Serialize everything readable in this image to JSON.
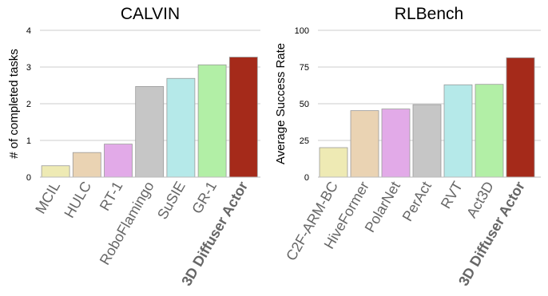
{
  "chart_data": [
    {
      "type": "bar",
      "title": "CALVIN",
      "ylabel": "# of completed tasks",
      "xlabel": "",
      "ylim": [
        0,
        4
      ],
      "yticks": [
        0,
        1,
        2,
        3,
        4
      ],
      "grid": true,
      "categories": [
        "MCIL",
        "HULC",
        "RT-1",
        "RoboFlamingo",
        "SuSIE",
        "GR-1",
        "3D Diffuser Actor"
      ],
      "values": [
        0.31,
        0.67,
        0.9,
        2.47,
        2.69,
        3.06,
        3.27
      ],
      "bold_categories": [
        "3D Diffuser Actor"
      ],
      "colors": [
        "#eeeab4",
        "#ead3b3",
        "#e2aae8",
        "#c6c6c6",
        "#b5e9e9",
        "#b2efa6",
        "#a52a1a"
      ]
    },
    {
      "type": "bar",
      "title": "RLBench",
      "ylabel": "Average Success Rate",
      "xlabel": "",
      "ylim": [
        0,
        100
      ],
      "yticks": [
        0,
        25,
        50,
        75,
        100
      ],
      "grid": true,
      "categories": [
        "C2F-ARM-BC",
        "HiveFormer",
        "PolarNet",
        "PerAct",
        "RVT",
        "Act3D",
        "3D Diffuser Actor"
      ],
      "values": [
        20.1,
        45.3,
        46.4,
        49.4,
        62.9,
        63.2,
        81.3
      ],
      "bold_categories": [
        "3D Diffuser Actor"
      ],
      "colors": [
        "#eeeab4",
        "#ead3b3",
        "#e2aae8",
        "#c6c6c6",
        "#b5e9e9",
        "#b2efa6",
        "#a52a1a"
      ]
    }
  ]
}
